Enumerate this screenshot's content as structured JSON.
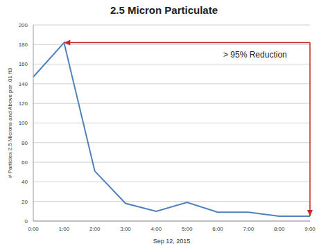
{
  "chart_data": {
    "type": "line",
    "title": "2.5 Micron Particulate",
    "x_label": "Sep 12, 2015",
    "y_label": "# Particles 2.5 Microns and Above per .01 ft3",
    "categories": [
      "0:00",
      "1:00",
      "2:00",
      "3:00",
      "4:00",
      "5:00",
      "6:00",
      "7:00",
      "8:00",
      "9:00"
    ],
    "values": [
      147,
      182,
      51,
      18,
      10,
      19,
      9,
      9,
      5,
      5
    ],
    "color": "#4f81bd",
    "ylim": [
      0,
      200
    ],
    "yticks": [
      0,
      20,
      40,
      60,
      80,
      100,
      120,
      140,
      160,
      180,
      200
    ],
    "grid": true,
    "annotations": [
      "> 95% Reduction"
    ]
  }
}
